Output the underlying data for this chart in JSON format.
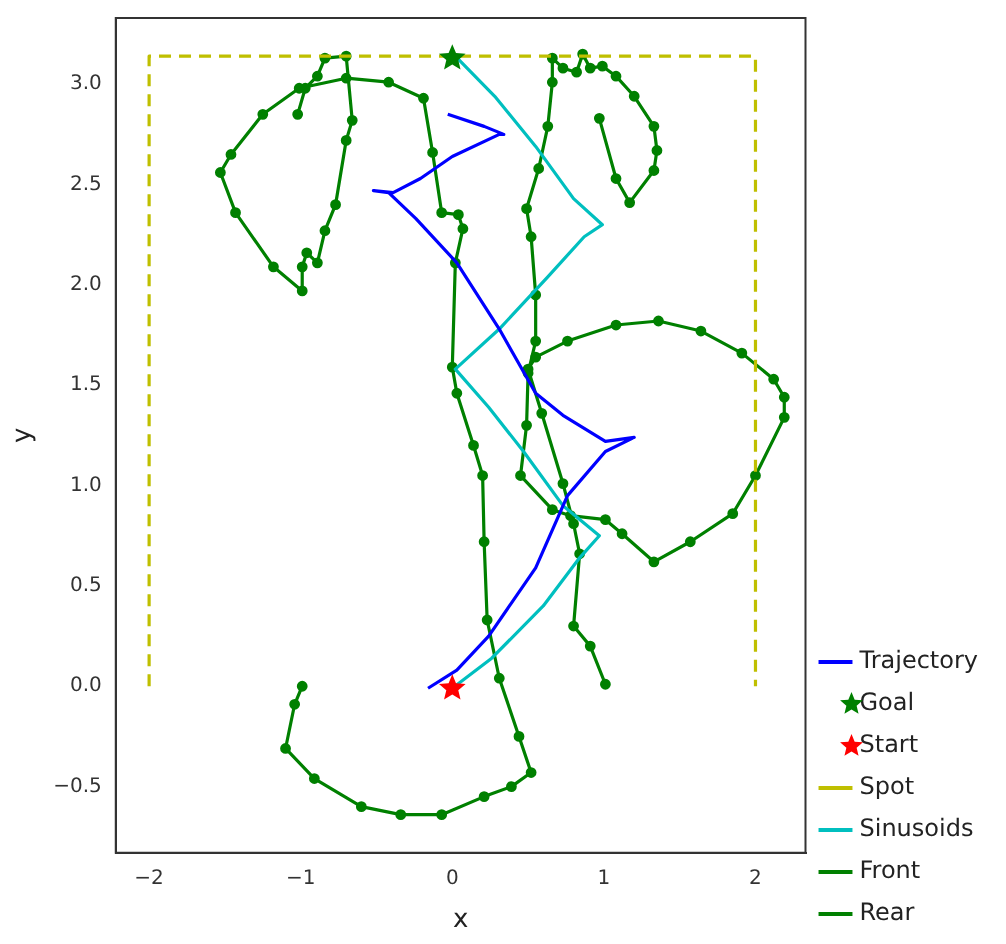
{
  "chart_data": {
    "type": "line",
    "xlabel": "x",
    "ylabel": "y",
    "xlim": [
      -2.22,
      2.33
    ],
    "ylim": [
      -0.83,
      3.33
    ],
    "xticks": [
      {
        "value": -2,
        "label": "−2"
      },
      {
        "value": -1,
        "label": "−1"
      },
      {
        "value": 0,
        "label": "0"
      },
      {
        "value": 1,
        "label": "1"
      },
      {
        "value": 2,
        "label": "2"
      }
    ],
    "yticks": [
      {
        "value": -0.5,
        "label": "−0.5"
      },
      {
        "value": 0,
        "label": "0.0"
      },
      {
        "value": 0.5,
        "label": "0.5"
      },
      {
        "value": 1,
        "label": "1.0"
      },
      {
        "value": 1.5,
        "label": "1.5"
      },
      {
        "value": 2,
        "label": "2.0"
      },
      {
        "value": 2.5,
        "label": "2.5"
      },
      {
        "value": 3,
        "label": "3.0"
      }
    ],
    "grid": false,
    "legend": "bottom right",
    "series": [
      {
        "name": "Trajectory",
        "type": "line",
        "color": "#0000ff",
        "marker": "none",
        "line_style": "solid",
        "x": [
          -0.16,
          0.03,
          0.24,
          0.55,
          0.76,
          1.01,
          1.2,
          1.01,
          0.73,
          0.55,
          0.31,
          0.03,
          -0.24,
          -0.42,
          -0.52,
          -0.39,
          -0.21,
          0.0,
          0.31,
          0.34,
          0.21,
          -0.03
        ],
        "values": [
          -0.01,
          0.08,
          0.25,
          0.59,
          0.95,
          1.17,
          1.24,
          1.22,
          1.35,
          1.46,
          1.78,
          2.11,
          2.33,
          2.46,
          2.47,
          2.46,
          2.53,
          2.64,
          2.75,
          2.75,
          2.79,
          2.85
        ]
      },
      {
        "name": "Goal",
        "type": "scatter",
        "color": "#008000",
        "marker": "star",
        "x": [
          0
        ],
        "values": [
          3.13
        ]
      },
      {
        "name": "Start",
        "type": "scatter",
        "color": "#ff0000",
        "marker": "star",
        "x": [
          0
        ],
        "values": [
          -0.01
        ]
      },
      {
        "name": "Spot",
        "type": "line",
        "color": "#bfbf00",
        "marker": "none",
        "line_style": "dashed",
        "x": [
          -2,
          -2,
          2,
          2
        ],
        "values": [
          0,
          3.14,
          3.14,
          0
        ]
      },
      {
        "name": "Sinusoids",
        "type": "line",
        "color": "#00bfbf",
        "marker": "none",
        "line_style": "solid",
        "x": [
          0,
          0.26,
          0.6,
          0.84,
          0.97,
          0.73,
          0.47,
          0.24,
          0.02,
          0.31,
          0.63,
          0.87,
          0.99,
          0.8,
          0.55,
          0.28,
          0.02
        ],
        "values": [
          -0.01,
          0.14,
          0.4,
          0.64,
          0.75,
          0.9,
          1.17,
          1.39,
          1.58,
          1.78,
          2.04,
          2.24,
          2.3,
          2.43,
          2.69,
          2.94,
          3.14
        ]
      },
      {
        "name": "Front",
        "type": "line",
        "color": "#008000",
        "marker": "circle",
        "line_style": "solid",
        "x": [
          -0.99,
          -1.04,
          -1.1,
          -0.91,
          -0.6,
          -0.34,
          -0.07,
          0.21,
          0.39,
          0.52,
          0.44,
          0.31,
          0.23,
          0.21,
          0.2,
          0.14,
          0.03,
          0.0,
          0.02,
          0.07,
          0.04,
          -0.07,
          -0.13,
          -0.19,
          -0.42,
          -0.7,
          -1.01,
          -1.25,
          -1.46,
          -1.53,
          -1.43,
          -1.18,
          -0.99,
          -0.99,
          -0.96,
          -0.89,
          -0.84,
          -0.77,
          -0.7,
          -0.66,
          -0.7,
          -0.84,
          -0.89,
          -0.97,
          -1.02
        ],
        "values": [
          0.0,
          -0.09,
          -0.31,
          -0.46,
          -0.6,
          -0.64,
          -0.64,
          -0.55,
          -0.5,
          -0.43,
          -0.25,
          0.04,
          0.33,
          0.72,
          1.05,
          1.2,
          1.46,
          1.59,
          2.11,
          2.28,
          2.35,
          2.36,
          2.66,
          2.93,
          3.01,
          3.03,
          2.98,
          2.85,
          2.65,
          2.56,
          2.36,
          2.09,
          1.97,
          2.09,
          2.16,
          2.11,
          2.27,
          2.4,
          2.72,
          2.82,
          3.14,
          3.13,
          3.04,
          2.98,
          2.85
        ]
      },
      {
        "name": "Rear",
        "type": "line",
        "color": "#008000",
        "marker": "circle",
        "line_style": "solid",
        "x": [
          1.01,
          0.91,
          0.8,
          0.84,
          0.8,
          0.73,
          0.59,
          0.5,
          0.55,
          0.76,
          1.08,
          1.36,
          1.64,
          1.91,
          2.12,
          2.19,
          2.19,
          2.0,
          1.85,
          1.57,
          1.33,
          1.12,
          1.01,
          0.78,
          0.66,
          0.45,
          0.49,
          0.5,
          0.55,
          0.55,
          0.52,
          0.49,
          0.57,
          0.63,
          0.66,
          0.66,
          0.73,
          0.82,
          0.86,
          0.91,
          0.99,
          1.08,
          1.2,
          1.33,
          1.35,
          1.33,
          1.17,
          1.08,
          0.97
        ],
        "values": [
          0.01,
          0.2,
          0.3,
          0.66,
          0.81,
          1.01,
          1.36,
          1.58,
          1.64,
          1.72,
          1.8,
          1.82,
          1.77,
          1.66,
          1.53,
          1.44,
          1.34,
          1.05,
          0.86,
          0.72,
          0.62,
          0.76,
          0.83,
          0.85,
          0.88,
          1.05,
          1.3,
          1.56,
          1.72,
          1.95,
          2.24,
          2.38,
          2.58,
          2.79,
          3.01,
          3.13,
          3.08,
          3.06,
          3.15,
          3.08,
          3.09,
          3.04,
          2.94,
          2.79,
          2.67,
          2.57,
          2.41,
          2.53,
          2.83
        ]
      }
    ]
  }
}
